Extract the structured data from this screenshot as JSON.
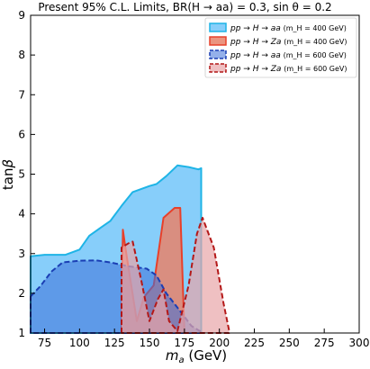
{
  "chart_data": {
    "type": "area",
    "title": "Present 95% C.L. Limits, BR(H → aa) = 0.3, sin θ = 0.2",
    "xlabel": "m_a (GeV)",
    "ylabel": "tanβ",
    "xlim": [
      65,
      300
    ],
    "ylim": [
      1,
      9
    ],
    "xticks": [
      "75",
      "100",
      "125",
      "150",
      "175",
      "200",
      "225",
      "250",
      "275",
      "300"
    ],
    "xtick_values": [
      75,
      100,
      125,
      150,
      175,
      200,
      225,
      250,
      275,
      300
    ],
    "yticks": [
      "1",
      "2",
      "3",
      "4",
      "5",
      "6",
      "7",
      "8",
      "9"
    ],
    "ytick_values": [
      1,
      2,
      3,
      4,
      5,
      6,
      7,
      8,
      9
    ],
    "legend_placement": "top-right",
    "series": [
      {
        "name": "pp → H → aa (m_H = 400 GeV)",
        "legend_main": "pp → H → aa",
        "legend_sub": "(m_H = 400 GeV)",
        "fill": "#87CEFA",
        "line": "#1EB4E6",
        "dashed": false,
        "fill_opacity": 1.0,
        "points": [
          [
            65,
            2.93
          ],
          [
            75,
            2.97
          ],
          [
            90,
            2.97
          ],
          [
            100,
            3.1
          ],
          [
            107,
            3.45
          ],
          [
            115,
            3.65
          ],
          [
            122,
            3.82
          ],
          [
            130,
            4.2
          ],
          [
            138,
            4.55
          ],
          [
            150,
            4.7
          ],
          [
            155,
            4.75
          ],
          [
            162,
            4.95
          ],
          [
            170,
            5.22
          ],
          [
            178,
            5.18
          ],
          [
            185,
            5.12
          ],
          [
            187,
            5.15
          ],
          [
            187,
            1
          ],
          [
            65,
            1
          ]
        ]
      },
      {
        "name": "pp → H → Za (m_H = 400 GeV)",
        "legend_main": "pp → H → Za",
        "legend_sub": "(m_H = 400 GeV)",
        "fill": "#E8836A",
        "line": "#E8402A",
        "dashed": false,
        "fill_opacity": 0.85,
        "points": [
          [
            130,
            1
          ],
          [
            131,
            3.6
          ],
          [
            133,
            3.1
          ],
          [
            141,
            1.3
          ],
          [
            146,
            1.9
          ],
          [
            153,
            2.2
          ],
          [
            160,
            3.9
          ],
          [
            168,
            4.15
          ],
          [
            172,
            4.15
          ],
          [
            175,
            1
          ]
        ]
      },
      {
        "name": "pp → H → aa (m_H = 600 GeV)",
        "legend_main": "pp → H → aa",
        "legend_sub": "(m_H = 600 GeV)",
        "fill": "#3C6FD8",
        "line": "#1A3EB4",
        "dashed": true,
        "fill_opacity": 0.55,
        "points": [
          [
            65,
            1.92
          ],
          [
            72,
            2.18
          ],
          [
            80,
            2.55
          ],
          [
            88,
            2.78
          ],
          [
            100,
            2.82
          ],
          [
            112,
            2.83
          ],
          [
            122,
            2.78
          ],
          [
            135,
            2.68
          ],
          [
            148,
            2.62
          ],
          [
            155,
            2.45
          ],
          [
            162,
            2.0
          ],
          [
            172,
            1.55
          ],
          [
            180,
            1.18
          ],
          [
            186,
            1.05
          ],
          [
            187,
            1.05
          ],
          [
            187,
            1
          ],
          [
            65,
            1
          ]
        ]
      },
      {
        "name": "pp → H → Za (m_H = 600 GeV)",
        "legend_main": "pp → H → Za",
        "legend_sub": "(m_H = 600 GeV)",
        "fill": "#E8A5A8",
        "line": "#B41818",
        "dashed": true,
        "fill_opacity": 0.7,
        "points": [
          [
            130,
            1
          ],
          [
            130,
            3.15
          ],
          [
            136,
            3.28
          ],
          [
            138,
            3.3
          ],
          [
            144,
            2.35
          ],
          [
            150,
            1.3
          ],
          [
            156,
            1.85
          ],
          [
            160,
            2.1
          ],
          [
            164,
            1.3
          ],
          [
            170,
            1.05
          ],
          [
            178,
            2.2
          ],
          [
            184,
            3.5
          ],
          [
            188,
            3.9
          ],
          [
            196,
            3.15
          ],
          [
            203,
            1.75
          ],
          [
            207,
            1.05
          ],
          [
            207,
            1
          ]
        ]
      }
    ]
  }
}
